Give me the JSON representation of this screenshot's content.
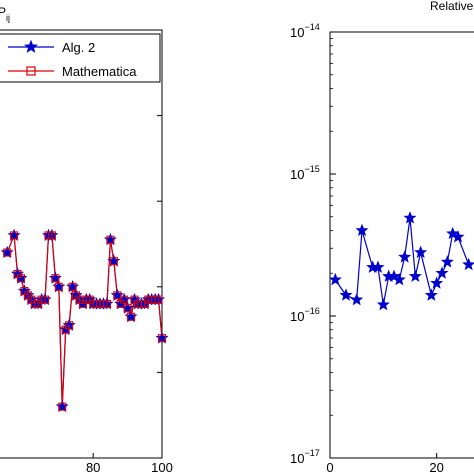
{
  "chart_data": [
    {
      "type": "line",
      "title": "P",
      "title_subscript": "ij",
      "xlim": [
        50,
        100
      ],
      "ylim": [
        0,
        1
      ],
      "x_ticks": [
        80,
        100
      ],
      "x_tick_labels": [
        "80",
        "100"
      ],
      "grid": false,
      "legend": {
        "placement": "top-right",
        "entries": [
          "Alg. 2",
          "Mathematica"
        ]
      },
      "series": [
        {
          "name": "Alg. 2",
          "color": "#0000cc",
          "marker": "star",
          "x": [
            55,
            57,
            58,
            59,
            60,
            61,
            62,
            63,
            64,
            65,
            66,
            67,
            68,
            69,
            70,
            71,
            72,
            73,
            74,
            75,
            76,
            77,
            78,
            79,
            80,
            81,
            82,
            83,
            84,
            85,
            86,
            87,
            88,
            89,
            90,
            91,
            92,
            93,
            94,
            95,
            96,
            97,
            98,
            99,
            100
          ],
          "y": [
            0.48,
            0.52,
            0.43,
            0.42,
            0.39,
            0.38,
            0.37,
            0.36,
            0.36,
            0.37,
            0.37,
            0.52,
            0.52,
            0.42,
            0.4,
            0.12,
            0.3,
            0.31,
            0.4,
            0.38,
            0.37,
            0.36,
            0.37,
            0.37,
            0.36,
            0.36,
            0.36,
            0.36,
            0.36,
            0.51,
            0.46,
            0.38,
            0.36,
            0.37,
            0.35,
            0.33,
            0.37,
            0.36,
            0.36,
            0.36,
            0.37,
            0.37,
            0.37,
            0.37,
            0.28
          ]
        },
        {
          "name": "Mathematica",
          "color": "#dd0000",
          "marker": "square",
          "x": [
            55,
            57,
            58,
            59,
            60,
            61,
            62,
            63,
            64,
            65,
            66,
            67,
            68,
            69,
            70,
            71,
            72,
            73,
            74,
            75,
            76,
            77,
            78,
            79,
            80,
            81,
            82,
            83,
            84,
            85,
            86,
            87,
            88,
            89,
            90,
            91,
            92,
            93,
            94,
            95,
            96,
            97,
            98,
            99,
            100
          ],
          "y": [
            0.48,
            0.52,
            0.43,
            0.42,
            0.39,
            0.38,
            0.37,
            0.36,
            0.36,
            0.37,
            0.37,
            0.52,
            0.52,
            0.42,
            0.4,
            0.12,
            0.3,
            0.31,
            0.4,
            0.38,
            0.37,
            0.36,
            0.37,
            0.37,
            0.36,
            0.36,
            0.36,
            0.36,
            0.36,
            0.51,
            0.46,
            0.38,
            0.36,
            0.37,
            0.35,
            0.33,
            0.37,
            0.36,
            0.36,
            0.36,
            0.37,
            0.37,
            0.37,
            0.37,
            0.28
          ]
        }
      ]
    },
    {
      "type": "line",
      "title": "Relative",
      "y_scale": "log",
      "ylim": [
        1e-17,
        1e-14
      ],
      "xlim": [
        0,
        30
      ],
      "y_ticks": [
        1e-14,
        1e-15,
        1e-16,
        1e-17
      ],
      "y_tick_bases": [
        "10",
        "10",
        "10",
        "10"
      ],
      "y_tick_exponents": [
        "−14",
        "−15",
        "−16",
        "−17"
      ],
      "x_ticks": [
        0,
        20
      ],
      "x_tick_labels": [
        "0",
        "20"
      ],
      "grid": false,
      "series": [
        {
          "color": "#0000cc",
          "marker": "star",
          "x": [
            1,
            3,
            5,
            6,
            8,
            9,
            10,
            11,
            12,
            13,
            14,
            15,
            16,
            17,
            19,
            20,
            21,
            22,
            23,
            24,
            26
          ],
          "y": [
            1.8e-16,
            1.4e-16,
            1.3e-16,
            4e-16,
            2.2e-16,
            2.2e-16,
            1.2e-16,
            1.9e-16,
            1.9e-16,
            1.8e-16,
            2.6e-16,
            4.9e-16,
            1.9e-16,
            2.8e-16,
            1.4e-16,
            1.7e-16,
            2e-16,
            2.4e-16,
            3.8e-16,
            3.6e-16,
            2.3e-16
          ]
        }
      ]
    }
  ]
}
